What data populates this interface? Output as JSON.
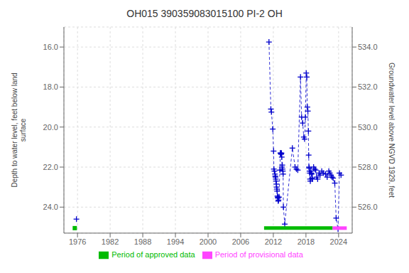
{
  "chart_data": {
    "type": "line",
    "title": "OH015 390359083015100 PI-2 OH",
    "y_label": "Depth to water level, feet below land\nsurface",
    "y2_label": "Groundwater level above NGVD 1929, feet",
    "xlim": [
      1973.5,
      2026.5
    ],
    "xticks": [
      1976,
      1982,
      1988,
      1994,
      2000,
      2006,
      2012,
      2018,
      2024
    ],
    "ylim": [
      25.3,
      15.0
    ],
    "yticks": [
      {
        "value": 16.0,
        "label": "16.0"
      },
      {
        "value": 18.0,
        "label": "18.0"
      },
      {
        "value": 20.0,
        "label": "20.0"
      },
      {
        "value": 22.0,
        "label": "22.0"
      },
      {
        "value": 24.0,
        "label": "24.0"
      }
    ],
    "y2lim": [
      524.7,
      535.0
    ],
    "y2ticks": [
      {
        "value": 534.0,
        "label": "534.0"
      },
      {
        "value": 532.0,
        "label": "532.0"
      },
      {
        "value": 530.0,
        "label": "530.0"
      },
      {
        "value": 528.0,
        "label": "528.0"
      },
      {
        "value": 526.0,
        "label": "526.0"
      }
    ],
    "grid": true,
    "legend": "bottom",
    "series": [
      {
        "type": "scatter",
        "color": "#0000cc",
        "marker": "plus",
        "x": [
          1975.8
        ],
        "values": [
          24.6
        ]
      },
      {
        "type": "scatter",
        "color": "#00bb00",
        "marker": "square",
        "x": [
          1975.5
        ],
        "values": [
          25.05
        ]
      },
      {
        "type": "line",
        "color": "#0000cc",
        "marker": "plus",
        "line_style": "dashed",
        "x": [
          2011.2,
          2011.55,
          2011.65,
          2011.9,
          2012.05,
          2012.1,
          2012.2,
          2012.3,
          2012.35,
          2012.4,
          2012.45,
          2012.5,
          2012.55,
          2012.6,
          2012.65,
          2012.7,
          2012.75,
          2012.8,
          2012.85,
          2012.9,
          2012.95,
          2013.05,
          2013.2,
          2013.3,
          2013.35,
          2013.4,
          2013.45,
          2013.5,
          2013.55,
          2013.6,
          2013.65,
          2013.7,
          2013.75,
          2013.8,
          2013.85,
          2014.1,
          2015.5,
          2016.0,
          2016.25,
          2016.5,
          2017.0,
          2017.2,
          2017.4,
          2017.6,
          2017.75,
          2017.9,
          2018.05,
          2018.15,
          2018.25,
          2018.35,
          2018.45,
          2018.5,
          2018.55,
          2018.6,
          2018.65,
          2018.7,
          2018.75,
          2018.8,
          2018.9,
          2019.0,
          2019.05,
          2019.1,
          2019.2,
          2019.4,
          2019.6,
          2019.8,
          2019.95,
          2020.15,
          2020.4,
          2020.6,
          2020.9,
          2021.2,
          2021.6,
          2021.9,
          2022.2,
          2022.4,
          2022.6,
          2022.8,
          2023.0,
          2023.3,
          2023.55,
          2023.9,
          2024.15,
          2024.45
        ],
        "values": [
          15.75,
          19.1,
          19.25,
          20.1,
          21.2,
          22.1,
          22.2,
          22.35,
          22.45,
          22.5,
          22.6,
          22.7,
          22.85,
          23.0,
          23.1,
          23.2,
          23.45,
          23.5,
          23.55,
          23.7,
          23.65,
          23.5,
          22.15,
          21.3,
          21.3,
          21.35,
          21.35,
          21.3,
          21.5,
          22.0,
          21.9,
          22.1,
          22.2,
          22.35,
          24.0,
          24.85,
          21.05,
          22.0,
          22.1,
          22.15,
          17.5,
          19.5,
          19.8,
          20.5,
          20.6,
          19.5,
          17.3,
          17.5,
          19.0,
          19.2,
          20.2,
          21.4,
          22.0,
          22.05,
          22.2,
          22.3,
          22.6,
          22.7,
          22.2,
          22.3,
          22.35,
          22.55,
          22.6,
          22.0,
          22.1,
          22.15,
          22.5,
          22.6,
          22.3,
          22.4,
          22.2,
          22.3,
          22.35,
          22.5,
          22.2,
          22.3,
          22.4,
          22.5,
          22.55,
          22.8,
          24.55,
          25.1,
          22.3,
          22.4
        ]
      },
      {
        "name": "Period of approved data",
        "type": "band",
        "color": "#00bb00",
        "x": [
          2010.3,
          2022.9
        ],
        "values": [
          25.05,
          25.05
        ]
      },
      {
        "name": "Period of provisional data",
        "type": "band",
        "color": "#ff44ff",
        "x": [
          2022.9,
          2025.5
        ],
        "values": [
          25.05,
          25.05
        ]
      }
    ]
  }
}
